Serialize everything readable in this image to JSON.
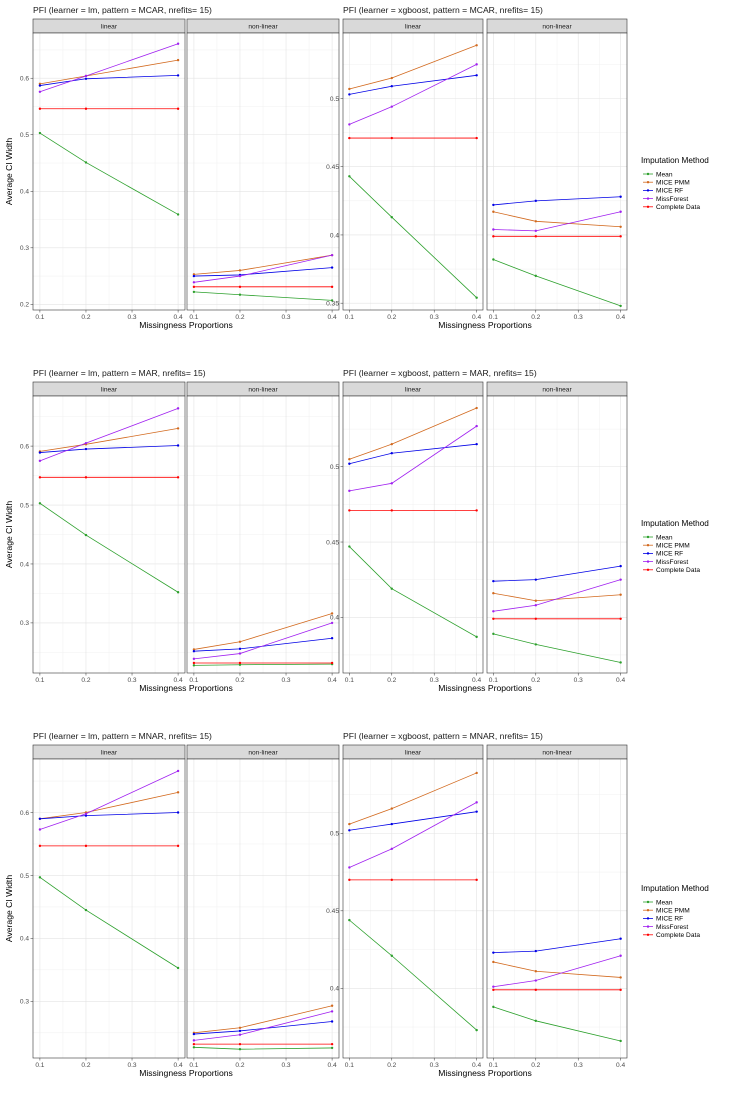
{
  "figure": {
    "y_axis_label": "Average CI Width",
    "x_axis_label": "Missingness Proportions",
    "legend_title": "Imputation Method",
    "strip_labels": [
      "linear",
      "non-linear"
    ]
  },
  "methods": [
    {
      "name": "Mean",
      "color": "#2ca02c"
    },
    {
      "name": "MICE PMM",
      "color": "#d2691e"
    },
    {
      "name": "MICE RF",
      "color": "#0000e6"
    },
    {
      "name": "MissForest",
      "color": "#a020f0"
    },
    {
      "name": "Complete Data",
      "color": "#ff0000"
    }
  ],
  "chart_data": [
    {
      "type": "line",
      "title": "PFI (learner = lm, pattern = MCAR, nrefits= 15)",
      "xlabel": "Missingness Proportions",
      "ylabel": "Average CI Width",
      "x": [
        0.1,
        0.2,
        0.4
      ],
      "xticks": [
        0.1,
        0.2,
        0.3,
        0.4
      ],
      "yticks": [
        0.2,
        0.3,
        0.4,
        0.5,
        0.6
      ],
      "ylim": [
        0.19,
        0.68
      ],
      "facets": [
        {
          "label": "linear",
          "series": [
            {
              "name": "Mean",
              "values": [
                0.503,
                0.451,
                0.359
              ]
            },
            {
              "name": "MICE PMM",
              "values": [
                0.59,
                0.604,
                0.632
              ]
            },
            {
              "name": "MICE RF",
              "values": [
                0.587,
                0.599,
                0.605
              ]
            },
            {
              "name": "MissForest",
              "values": [
                0.576,
                0.604,
                0.661
              ]
            },
            {
              "name": "Complete Data",
              "values": [
                0.546,
                0.546,
                0.546
              ]
            }
          ]
        },
        {
          "label": "non-linear",
          "series": [
            {
              "name": "Mean",
              "values": [
                0.222,
                0.217,
                0.207
              ]
            },
            {
              "name": "MICE PMM",
              "values": [
                0.253,
                0.26,
                0.287
              ]
            },
            {
              "name": "MICE RF",
              "values": [
                0.25,
                0.252,
                0.265
              ]
            },
            {
              "name": "MissForest",
              "values": [
                0.239,
                0.25,
                0.287
              ]
            },
            {
              "name": "Complete Data",
              "values": [
                0.231,
                0.231,
                0.231
              ]
            }
          ]
        }
      ]
    },
    {
      "type": "line",
      "title": "PFI (learner = xgboost, pattern = MCAR, nrefits= 15)",
      "xlabel": "Missingness Proportions",
      "ylabel": "",
      "x": [
        0.1,
        0.2,
        0.4
      ],
      "xticks": [
        0.1,
        0.2,
        0.3,
        0.4
      ],
      "yticks": [
        0.35,
        0.4,
        0.45,
        0.5
      ],
      "ylim": [
        0.345,
        0.548
      ],
      "facets": [
        {
          "label": "linear",
          "series": [
            {
              "name": "Mean",
              "values": [
                0.443,
                0.413,
                0.354
              ]
            },
            {
              "name": "MICE PMM",
              "values": [
                0.507,
                0.515,
                0.539
              ]
            },
            {
              "name": "MICE RF",
              "values": [
                0.503,
                0.509,
                0.517
              ]
            },
            {
              "name": "MissForest",
              "values": [
                0.481,
                0.494,
                0.525
              ]
            },
            {
              "name": "Complete Data",
              "values": [
                0.471,
                0.471,
                0.471
              ]
            }
          ]
        },
        {
          "label": "non-linear",
          "series": [
            {
              "name": "Mean",
              "values": [
                0.382,
                0.37,
                0.348
              ]
            },
            {
              "name": "MICE PMM",
              "values": [
                0.417,
                0.41,
                0.406
              ]
            },
            {
              "name": "MICE RF",
              "values": [
                0.422,
                0.425,
                0.428
              ]
            },
            {
              "name": "MissForest",
              "values": [
                0.404,
                0.403,
                0.417
              ]
            },
            {
              "name": "Complete Data",
              "values": [
                0.399,
                0.399,
                0.399
              ]
            }
          ]
        }
      ]
    },
    {
      "type": "line",
      "title": "PFI (learner = lm, pattern = MAR, nrefits= 15)",
      "xlabel": "Missingness Proportions",
      "ylabel": "Average CI Width",
      "x": [
        0.1,
        0.2,
        0.4
      ],
      "xticks": [
        0.1,
        0.2,
        0.3,
        0.4
      ],
      "yticks": [
        0.3,
        0.4,
        0.5,
        0.6
      ],
      "ylim": [
        0.215,
        0.685
      ],
      "facets": [
        {
          "label": "linear",
          "series": [
            {
              "name": "Mean",
              "values": [
                0.503,
                0.449,
                0.352
              ]
            },
            {
              "name": "MICE PMM",
              "values": [
                0.591,
                0.603,
                0.63
              ]
            },
            {
              "name": "MICE RF",
              "values": [
                0.589,
                0.595,
                0.601
              ]
            },
            {
              "name": "MissForest",
              "values": [
                0.575,
                0.605,
                0.664
              ]
            },
            {
              "name": "Complete Data",
              "values": [
                0.547,
                0.547,
                0.547
              ]
            }
          ]
        },
        {
          "label": "non-linear",
          "series": [
            {
              "name": "Mean",
              "values": [
                0.228,
                0.229,
                0.23
              ]
            },
            {
              "name": "MICE PMM",
              "values": [
                0.255,
                0.268,
                0.316
              ]
            },
            {
              "name": "MICE RF",
              "values": [
                0.252,
                0.256,
                0.274
              ]
            },
            {
              "name": "MissForest",
              "values": [
                0.239,
                0.248,
                0.3
              ]
            },
            {
              "name": "Complete Data",
              "values": [
                0.232,
                0.232,
                0.232
              ]
            }
          ]
        }
      ]
    },
    {
      "type": "line",
      "title": "PFI (learner = xgboost, pattern = MAR, nrefits= 15)",
      "xlabel": "Missingness Proportions",
      "ylabel": "",
      "x": [
        0.1,
        0.2,
        0.4
      ],
      "xticks": [
        0.1,
        0.2,
        0.3,
        0.4
      ],
      "yticks": [
        0.4,
        0.45,
        0.5
      ],
      "ylim": [
        0.363,
        0.547
      ],
      "facets": [
        {
          "label": "linear",
          "series": [
            {
              "name": "Mean",
              "values": [
                0.447,
                0.419,
                0.387
              ]
            },
            {
              "name": "MICE PMM",
              "values": [
                0.505,
                0.515,
                0.539
              ]
            },
            {
              "name": "MICE RF",
              "values": [
                0.502,
                0.509,
                0.515
              ]
            },
            {
              "name": "MissForest",
              "values": [
                0.484,
                0.489,
                0.527
              ]
            },
            {
              "name": "Complete Data",
              "values": [
                0.471,
                0.471,
                0.471
              ]
            }
          ]
        },
        {
          "label": "non-linear",
          "series": [
            {
              "name": "Mean",
              "values": [
                0.389,
                0.382,
                0.37
              ]
            },
            {
              "name": "MICE PMM",
              "values": [
                0.416,
                0.411,
                0.415
              ]
            },
            {
              "name": "MICE RF",
              "values": [
                0.424,
                0.425,
                0.434
              ]
            },
            {
              "name": "MissForest",
              "values": [
                0.404,
                0.408,
                0.425
              ]
            },
            {
              "name": "Complete Data",
              "values": [
                0.399,
                0.399,
                0.399
              ]
            }
          ]
        }
      ]
    },
    {
      "type": "line",
      "title": "PFI (learner = lm, pattern = MNAR, nrefits= 15)",
      "xlabel": "Missingness Proportions",
      "ylabel": "Average CI Width",
      "x": [
        0.1,
        0.2,
        0.4
      ],
      "xticks": [
        0.1,
        0.2,
        0.3,
        0.4
      ],
      "yticks": [
        0.3,
        0.4,
        0.5,
        0.6
      ],
      "ylim": [
        0.21,
        0.685
      ],
      "facets": [
        {
          "label": "linear",
          "series": [
            {
              "name": "Mean",
              "values": [
                0.497,
                0.445,
                0.353
              ]
            },
            {
              "name": "MICE PMM",
              "values": [
                0.59,
                0.6,
                0.632
              ]
            },
            {
              "name": "MICE RF",
              "values": [
                0.59,
                0.595,
                0.6
              ]
            },
            {
              "name": "MissForest",
              "values": [
                0.573,
                0.598,
                0.666
              ]
            },
            {
              "name": "Complete Data",
              "values": [
                0.547,
                0.547,
                0.547
              ]
            }
          ]
        },
        {
          "label": "non-linear",
          "series": [
            {
              "name": "Mean",
              "values": [
                0.227,
                0.224,
                0.226
              ]
            },
            {
              "name": "MICE PMM",
              "values": [
                0.25,
                0.258,
                0.293
              ]
            },
            {
              "name": "MICE RF",
              "values": [
                0.248,
                0.253,
                0.268
              ]
            },
            {
              "name": "MissForest",
              "values": [
                0.238,
                0.247,
                0.284
              ]
            },
            {
              "name": "Complete Data",
              "values": [
                0.232,
                0.232,
                0.232
              ]
            }
          ]
        }
      ]
    },
    {
      "type": "line",
      "title": "PFI (learner = xgboost, pattern = MNAR, nrefits= 15)",
      "xlabel": "Missingness Proportions",
      "ylabel": "",
      "x": [
        0.1,
        0.2,
        0.4
      ],
      "xticks": [
        0.1,
        0.2,
        0.3,
        0.4
      ],
      "yticks": [
        0.4,
        0.45,
        0.5
      ],
      "ylim": [
        0.355,
        0.548
      ],
      "facets": [
        {
          "label": "linear",
          "series": [
            {
              "name": "Mean",
              "values": [
                0.444,
                0.421,
                0.373
              ]
            },
            {
              "name": "MICE PMM",
              "values": [
                0.506,
                0.516,
                0.539
              ]
            },
            {
              "name": "MICE RF",
              "values": [
                0.502,
                0.506,
                0.514
              ]
            },
            {
              "name": "MissForest",
              "values": [
                0.478,
                0.49,
                0.52
              ]
            },
            {
              "name": "Complete Data",
              "values": [
                0.47,
                0.47,
                0.47
              ]
            }
          ]
        },
        {
          "label": "non-linear",
          "series": [
            {
              "name": "Mean",
              "values": [
                0.388,
                0.379,
                0.366
              ]
            },
            {
              "name": "MICE PMM",
              "values": [
                0.417,
                0.411,
                0.407
              ]
            },
            {
              "name": "MICE RF",
              "values": [
                0.423,
                0.424,
                0.432
              ]
            },
            {
              "name": "MissForest",
              "values": [
                0.401,
                0.405,
                0.421
              ]
            },
            {
              "name": "Complete Data",
              "values": [
                0.399,
                0.399,
                0.399
              ]
            }
          ]
        }
      ]
    }
  ]
}
